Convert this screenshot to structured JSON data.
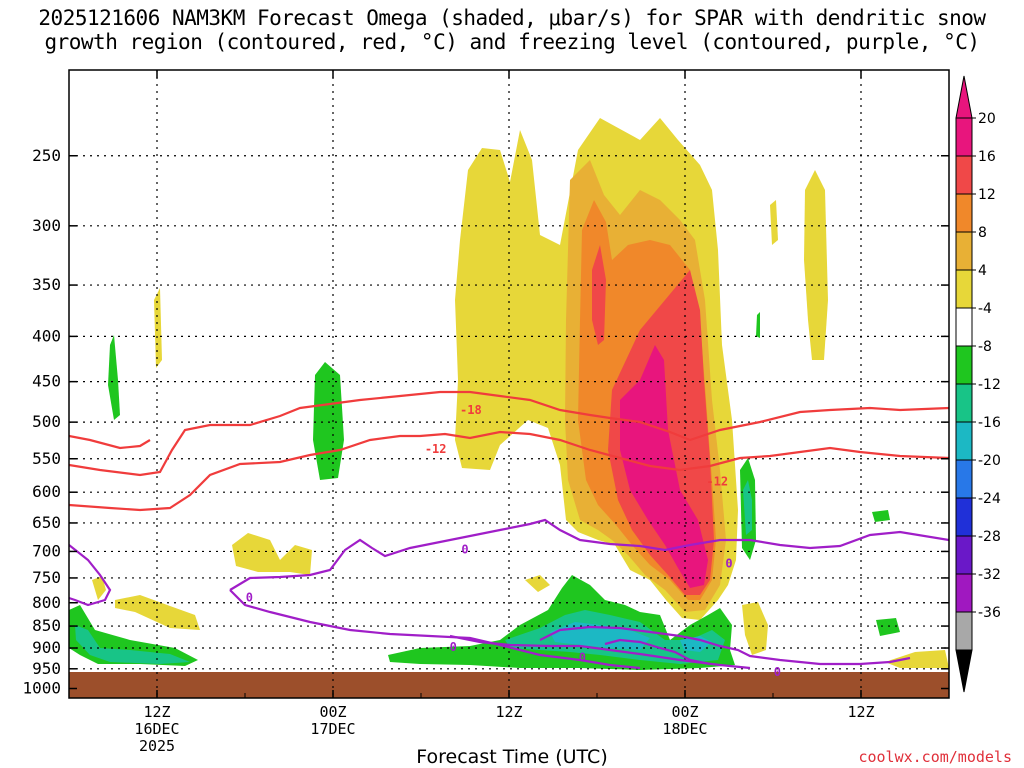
{
  "title": {
    "line1": "2025121606 NAM3KM Forecast Omega (shaded, μbar/s) for SPAR with dendritic snow",
    "line2": "growth region (contoured, red, °C) and freezing level (contoured, purple, °C)"
  },
  "credit": "coolwx.com/models",
  "chart_data": {
    "type": "heatmap",
    "title": "2025121606 NAM3KM Forecast Omega (shaded, μbar/s) for SPAR with dendritic snow growth region (contoured, red, °C) and freezing level (contoured, purple, °C)",
    "xlabel": "Forecast Time (UTC)",
    "ylabel": "",
    "x_range_hours": [
      0,
      60
    ],
    "y_range_hPa": [
      200,
      1025
    ],
    "y_scale": "log-pressure",
    "grid": true,
    "y_ticks": [
      250,
      300,
      350,
      400,
      450,
      500,
      550,
      600,
      650,
      700,
      750,
      800,
      850,
      900,
      950,
      1000
    ],
    "x_ticks": [
      {
        "hour": 6,
        "lines": [
          "12Z",
          "16DEC",
          "2025"
        ]
      },
      {
        "hour": 18,
        "lines": [
          "00Z",
          "17DEC"
        ]
      },
      {
        "hour": 30,
        "lines": [
          "12Z"
        ]
      },
      {
        "hour": 42,
        "lines": [
          "00Z",
          "18DEC"
        ]
      },
      {
        "hour": 54,
        "lines": [
          "12Z"
        ]
      }
    ],
    "colorbar": {
      "labels": [
        "20",
        "16",
        "12",
        "8",
        "4",
        "-4",
        "-8",
        "-12",
        "-16",
        "-20",
        "-24",
        "-28",
        "-32",
        "-36"
      ],
      "colors": [
        "#e8157d",
        "#f04848",
        "#f0882a",
        "#e8b035",
        "#e7d739",
        "#ffffff",
        "#1fc61f",
        "#18c487",
        "#1cb8c4",
        "#2878e8",
        "#2030d8",
        "#6a18c8",
        "#a018c0",
        "#a8a8a8"
      ],
      "top_arrow_color": "#e8157d",
      "bottom_arrow_color": "#000000"
    },
    "contours": [
      {
        "name": "-18",
        "color": "#f03c3c",
        "label_hour": 27.4,
        "label_hPa": 483
      },
      {
        "name": "-12",
        "color": "#f03c3c",
        "label_hour": 25.0,
        "label_hPa": 535
      },
      {
        "name": "-12",
        "color": "#f03c3c",
        "label_hour": 44.2,
        "label_hPa": 582
      },
      {
        "name": "0",
        "color": "#a01ec8",
        "label_hour": 12.3,
        "label_hPa": 787
      },
      {
        "name": "0",
        "color": "#a01ec8",
        "label_hour": 27.0,
        "label_hPa": 695
      },
      {
        "name": "0",
        "color": "#a01ec8",
        "label_hour": 26.2,
        "label_hPa": 895
      },
      {
        "name": "0",
        "color": "#a01ec8",
        "label_hour": 35.0,
        "label_hPa": 920
      },
      {
        "name": "0",
        "color": "#a01ec8",
        "label_hour": 45.0,
        "label_hPa": 720
      },
      {
        "name": "0",
        "color": "#a01ec8",
        "label_hour": 48.3,
        "label_hPa": 955
      }
    ]
  }
}
